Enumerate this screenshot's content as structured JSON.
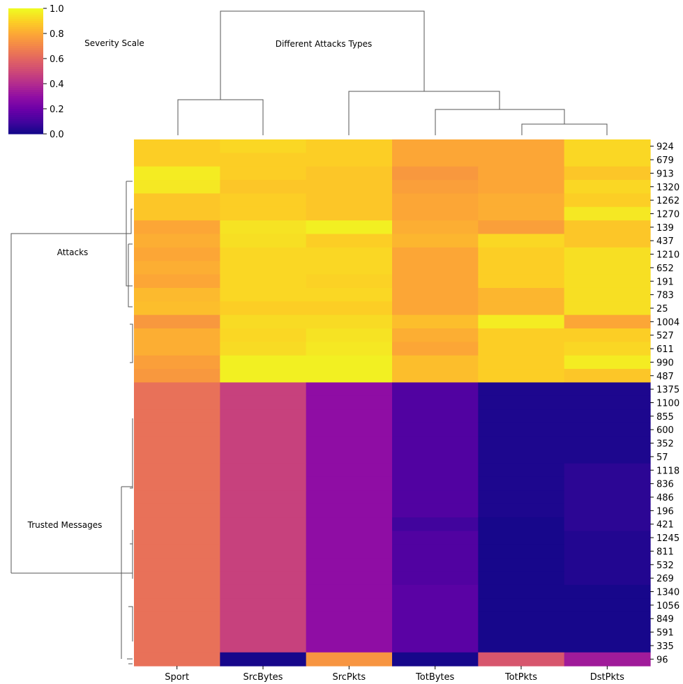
{
  "chart_data": {
    "type": "heatmap",
    "subtype": "clustermap",
    "colormap": "plasma",
    "colorbar": {
      "title": "Severity Scale",
      "range": [
        0.0,
        1.0
      ],
      "ticks": [
        "0.0",
        "0.2",
        "0.4",
        "0.6",
        "0.8",
        "1.0"
      ]
    },
    "column_dendrogram_label": "Different Attacks Types",
    "row_cluster_labels": [
      "Attacks",
      "Trusted Messages"
    ],
    "columns": [
      "Sport",
      "SrcBytes",
      "SrcPkts",
      "TotBytes",
      "TotPkts",
      "DstPkts"
    ],
    "row_tick_labels": [
      "924",
      "679",
      "913",
      "1320",
      "1262",
      "1270",
      "139",
      "437",
      "1210",
      "652",
      "191",
      "783",
      "25",
      "1004",
      "527",
      "611",
      "990",
      "487",
      "1375",
      "1100",
      "855",
      "600",
      "352",
      "57",
      "1118",
      "836",
      "486",
      "196",
      "421",
      "1245",
      "811",
      "532",
      "269",
      "1340",
      "1056",
      "849",
      "591",
      "335",
      "96"
    ],
    "rows": [
      [
        0.9,
        0.92,
        0.9,
        0.8,
        0.8,
        0.92
      ],
      [
        0.9,
        0.9,
        0.9,
        0.8,
        0.8,
        0.92
      ],
      [
        0.97,
        0.9,
        0.88,
        0.76,
        0.8,
        0.88
      ],
      [
        0.96,
        0.88,
        0.88,
        0.78,
        0.8,
        0.92
      ],
      [
        0.88,
        0.9,
        0.88,
        0.8,
        0.82,
        0.9
      ],
      [
        0.88,
        0.9,
        0.88,
        0.8,
        0.82,
        0.96
      ],
      [
        0.8,
        0.95,
        0.98,
        0.82,
        0.78,
        0.88
      ],
      [
        0.82,
        0.94,
        0.9,
        0.84,
        0.92,
        0.88
      ],
      [
        0.8,
        0.92,
        0.92,
        0.8,
        0.9,
        0.94
      ],
      [
        0.82,
        0.92,
        0.92,
        0.8,
        0.9,
        0.94
      ],
      [
        0.8,
        0.92,
        0.91,
        0.8,
        0.9,
        0.94
      ],
      [
        0.85,
        0.92,
        0.92,
        0.8,
        0.84,
        0.94
      ],
      [
        0.86,
        0.9,
        0.9,
        0.8,
        0.84,
        0.94
      ],
      [
        0.76,
        0.93,
        0.93,
        0.86,
        0.97,
        0.8
      ],
      [
        0.82,
        0.92,
        0.95,
        0.82,
        0.9,
        0.9
      ],
      [
        0.82,
        0.93,
        0.96,
        0.8,
        0.9,
        0.92
      ],
      [
        0.78,
        0.98,
        0.98,
        0.86,
        0.9,
        0.97
      ],
      [
        0.76,
        0.98,
        0.98,
        0.86,
        0.9,
        0.88
      ],
      [
        0.64,
        0.48,
        0.3,
        0.14,
        0.03,
        0.03
      ],
      [
        0.64,
        0.48,
        0.3,
        0.14,
        0.03,
        0.03
      ],
      [
        0.64,
        0.48,
        0.3,
        0.14,
        0.03,
        0.03
      ],
      [
        0.64,
        0.48,
        0.3,
        0.14,
        0.03,
        0.03
      ],
      [
        0.64,
        0.48,
        0.3,
        0.14,
        0.03,
        0.03
      ],
      [
        0.64,
        0.48,
        0.3,
        0.14,
        0.03,
        0.03
      ],
      [
        0.64,
        0.48,
        0.3,
        0.14,
        0.03,
        0.06
      ],
      [
        0.64,
        0.48,
        0.3,
        0.14,
        0.03,
        0.06
      ],
      [
        0.64,
        0.48,
        0.3,
        0.14,
        0.03,
        0.06
      ],
      [
        0.64,
        0.48,
        0.3,
        0.14,
        0.03,
        0.06
      ],
      [
        0.64,
        0.48,
        0.3,
        0.1,
        0.02,
        0.06
      ],
      [
        0.64,
        0.48,
        0.3,
        0.14,
        0.02,
        0.04
      ],
      [
        0.64,
        0.48,
        0.3,
        0.14,
        0.02,
        0.04
      ],
      [
        0.64,
        0.48,
        0.3,
        0.14,
        0.02,
        0.04
      ],
      [
        0.64,
        0.48,
        0.3,
        0.14,
        0.02,
        0.04
      ],
      [
        0.64,
        0.48,
        0.3,
        0.16,
        0.02,
        0.02
      ],
      [
        0.64,
        0.48,
        0.3,
        0.16,
        0.02,
        0.02
      ],
      [
        0.64,
        0.48,
        0.3,
        0.16,
        0.02,
        0.02
      ],
      [
        0.64,
        0.48,
        0.3,
        0.16,
        0.02,
        0.02
      ],
      [
        0.64,
        0.48,
        0.3,
        0.16,
        0.02,
        0.02
      ],
      [
        0.64,
        0.02,
        0.75,
        0.02,
        0.55,
        0.35
      ]
    ]
  }
}
